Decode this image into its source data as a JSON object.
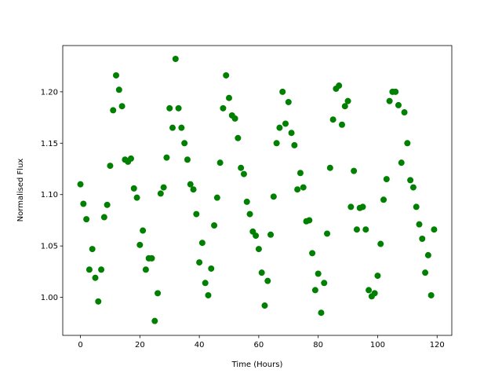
{
  "chart_data": {
    "type": "scatter",
    "xlabel": "Time (Hours)",
    "ylabel": "Normalised Flux",
    "color": "#008000",
    "x": [
      0,
      1,
      2,
      3,
      4,
      5,
      6,
      7,
      8,
      9,
      10,
      11,
      12,
      13,
      14,
      15,
      16,
      17,
      18,
      19,
      20,
      21,
      22,
      23,
      24,
      25,
      26,
      27,
      28,
      29,
      30,
      31,
      32,
      33,
      34,
      35,
      36,
      37,
      38,
      39,
      40,
      41,
      42,
      43,
      44,
      45,
      46,
      47,
      48,
      49,
      50,
      51,
      52,
      53,
      54,
      55,
      56,
      57,
      58,
      59,
      60,
      61,
      62,
      63,
      64,
      65,
      66,
      67,
      68,
      69,
      70,
      71,
      72,
      73,
      74,
      75,
      76,
      77,
      78,
      79,
      80,
      81,
      82,
      83,
      84,
      85,
      86,
      87,
      88,
      89,
      90,
      91,
      92,
      93,
      94,
      95,
      96,
      97,
      98,
      99,
      100,
      101,
      102,
      103,
      104,
      105,
      106,
      107,
      108,
      109,
      110,
      111,
      112,
      113,
      114,
      115,
      116,
      117,
      118,
      119
    ],
    "values": [
      1.11,
      1.091,
      1.076,
      1.027,
      1.047,
      1.019,
      0.996,
      1.027,
      1.078,
      1.09,
      1.128,
      1.182,
      1.216,
      1.202,
      1.186,
      1.134,
      1.132,
      1.135,
      1.106,
      1.097,
      1.051,
      1.065,
      1.027,
      1.038,
      1.038,
      0.977,
      1.004,
      1.101,
      1.107,
      1.136,
      1.184,
      1.165,
      1.232,
      1.184,
      1.165,
      1.15,
      1.134,
      1.11,
      1.105,
      1.081,
      1.034,
      1.053,
      1.014,
      1.002,
      1.028,
      1.07,
      1.097,
      1.131,
      1.184,
      1.216,
      1.194,
      1.177,
      1.174,
      1.155,
      1.126,
      1.12,
      1.093,
      1.081,
      1.064,
      1.06,
      1.047,
      1.024,
      0.992,
      1.016,
      1.061,
      1.098,
      1.15,
      1.165,
      1.2,
      1.169,
      1.19,
      1.16,
      1.148,
      1.105,
      1.121,
      1.107,
      1.074,
      1.075,
      1.043,
      1.007,
      1.023,
      0.985,
      1.014,
      1.062,
      1.126,
      1.173,
      1.203,
      1.206,
      1.168,
      1.186,
      1.191,
      1.088,
      1.123,
      1.066,
      1.087,
      1.088,
      1.066,
      1.007,
      1.001,
      1.004,
      1.021,
      1.052,
      1.095,
      1.115,
      1.191,
      1.2,
      1.2,
      1.187,
      1.131,
      1.18,
      1.15,
      1.114,
      1.107,
      1.088,
      1.071,
      1.057,
      1.024,
      1.041,
      1.002,
      1.066
    ],
    "xlim": [
      -5.95,
      124.95
    ],
    "xticks": [
      0,
      20,
      40,
      60,
      80,
      100,
      120
    ],
    "ylim": [
      0.963,
      1.245
    ],
    "yticks": [
      {
        "value": 1.0,
        "label": "1.00"
      },
      {
        "value": 1.05,
        "label": "1.05"
      },
      {
        "value": 1.1,
        "label": "1.10"
      },
      {
        "value": 1.15,
        "label": "1.15"
      },
      {
        "value": 1.2,
        "label": "1.20"
      }
    ]
  }
}
